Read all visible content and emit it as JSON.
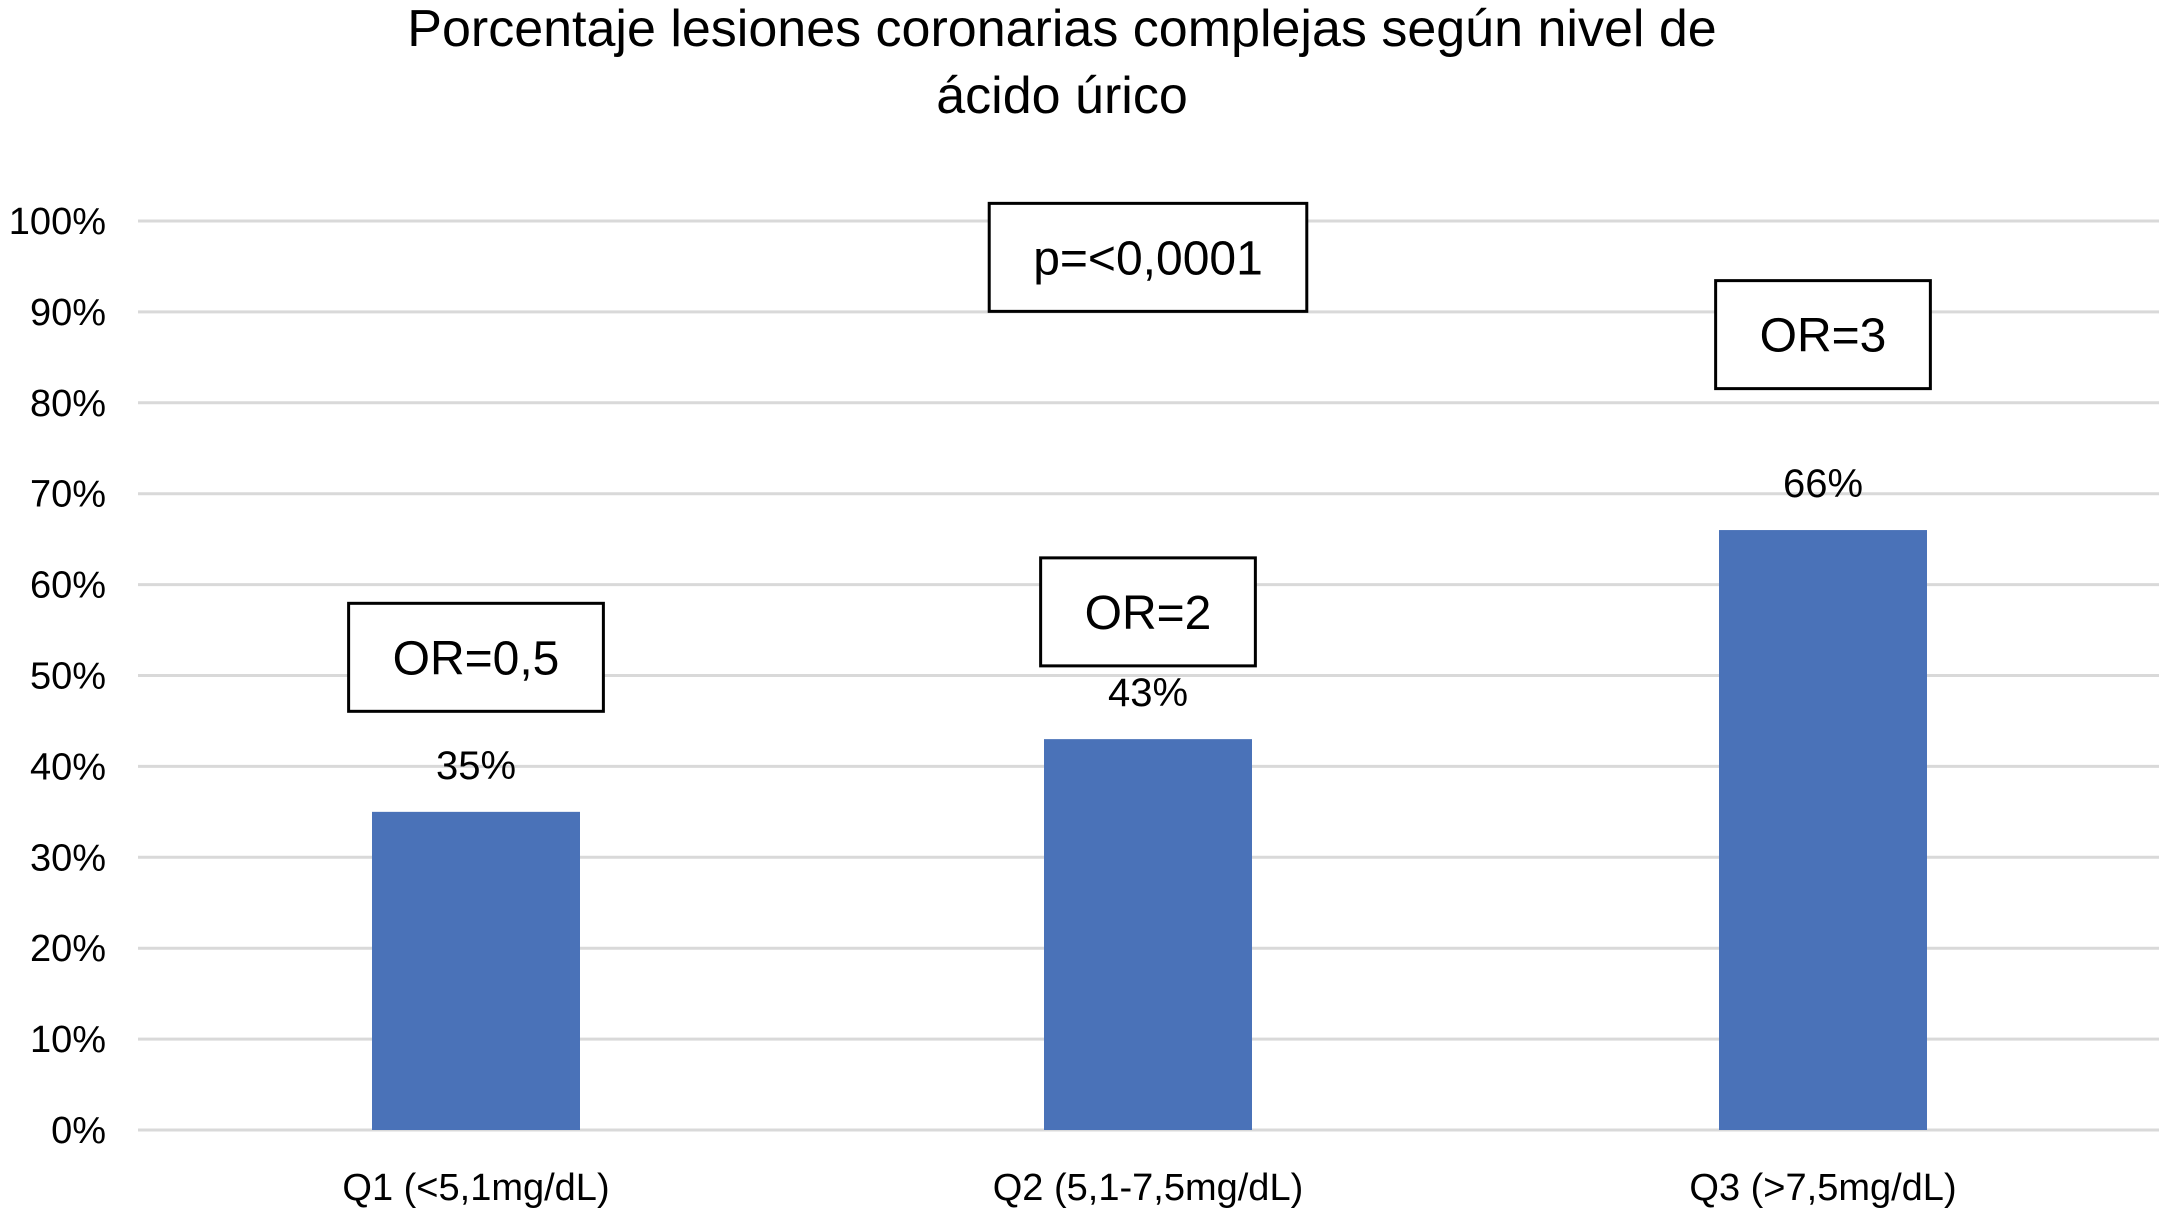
{
  "chart_data": {
    "type": "bar",
    "title": "Porcentaje lesiones coronarias complejas según nivel de ácido úrico",
    "title_lines": [
      "Porcentaje lesiones coronarias complejas según nivel de",
      "ácido úrico"
    ],
    "categories": [
      "Q1 (<5,1mg/dL)",
      "Q2 (5,1-7,5mg/dL)",
      "Q3 (>7,5mg/dL)"
    ],
    "values": [
      35,
      43,
      66
    ],
    "data_labels": [
      "35%",
      "43%",
      "66%"
    ],
    "bar_color": "#4a72b8",
    "ylim": [
      0,
      100
    ],
    "yticks": [
      0,
      10,
      20,
      30,
      40,
      50,
      60,
      70,
      80,
      90,
      100
    ],
    "ytick_labels": [
      "0%",
      "10%",
      "20%",
      "30%",
      "40%",
      "50%",
      "60%",
      "70%",
      "80%",
      "90%",
      "100%"
    ],
    "xlabel": "",
    "ylabel": "",
    "grid": true,
    "legend": "none",
    "annotations": [
      {
        "text": "OR=0,5",
        "category": 0,
        "y": 52
      },
      {
        "text": "OR=2",
        "category": 1,
        "y": 57
      },
      {
        "text": "p=<0,0001",
        "category": 1,
        "y": 96
      },
      {
        "text": "OR=3",
        "category": 2,
        "y": 87.5
      }
    ]
  }
}
